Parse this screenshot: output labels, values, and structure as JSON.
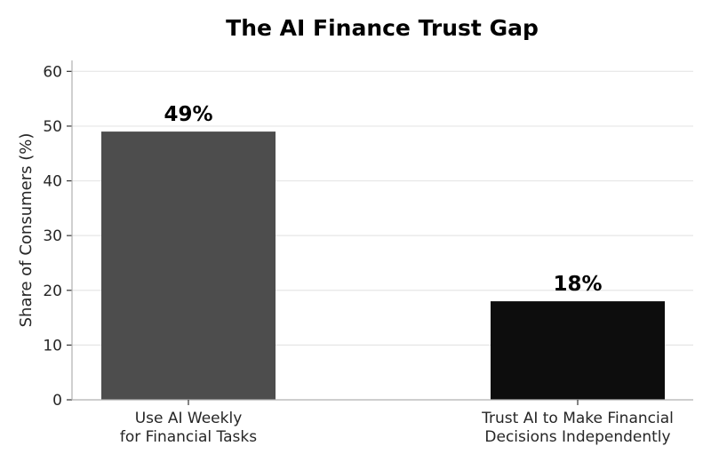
{
  "chart_data": {
    "type": "bar",
    "title": "The AI Finance Trust Gap",
    "ylabel": "Share of Consumers (%)",
    "xlabel": "",
    "ylim": [
      0,
      62
    ],
    "yticks": [
      0,
      10,
      20,
      30,
      40,
      50,
      60
    ],
    "grid": "horizontal",
    "categories": [
      [
        "Use AI Weekly",
        "for Financial Tasks"
      ],
      [
        "Trust AI to Make Financial",
        "Decisions Independently"
      ]
    ],
    "values": [
      49,
      18
    ],
    "data_labels": [
      "49%",
      "18%"
    ],
    "colors": [
      "#4d4d4d",
      "#0d0d0d"
    ]
  }
}
